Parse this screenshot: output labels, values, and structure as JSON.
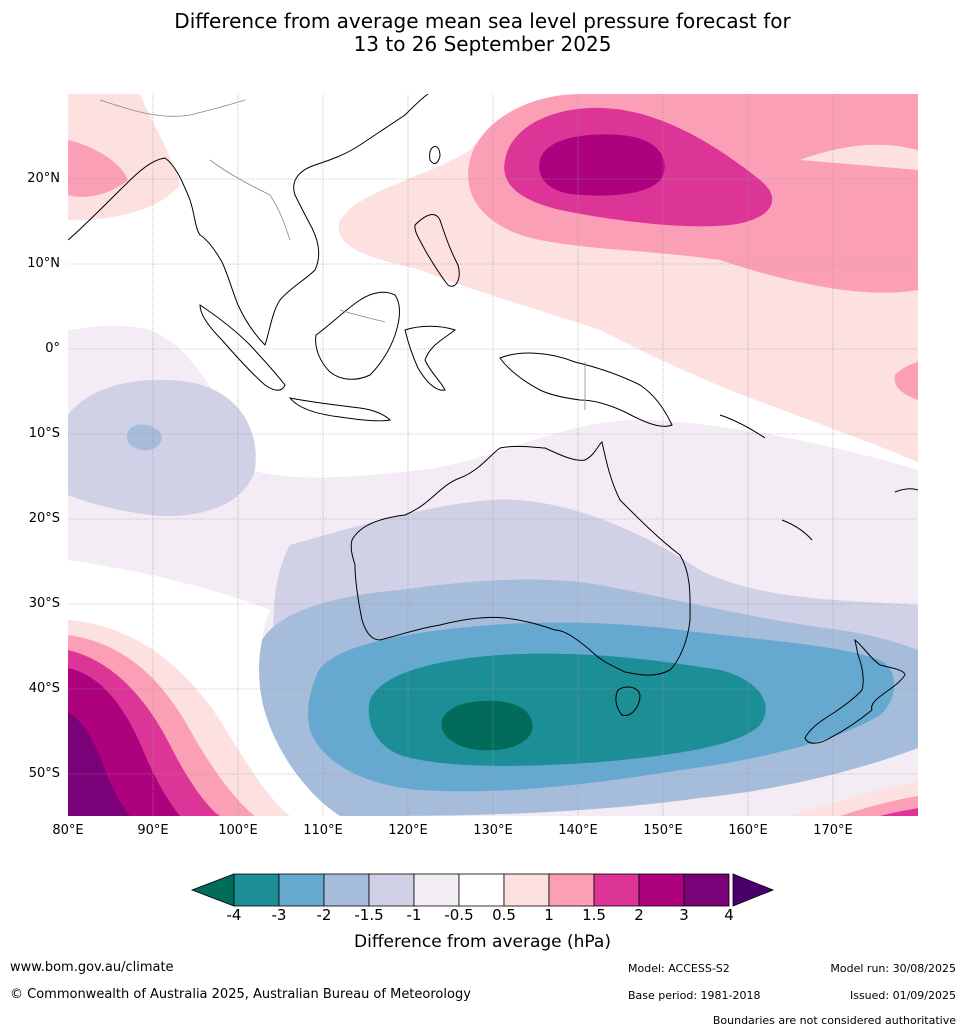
{
  "title": {
    "line1": "Difference from average mean sea level pressure forecast for",
    "line2": "13 to 26 September 2025"
  },
  "axes": {
    "lat_labels": [
      "20°N",
      "10°N",
      "0°",
      "10°S",
      "20°S",
      "30°S",
      "40°S",
      "50°S"
    ],
    "lon_labels": [
      "80°E",
      "90°E",
      "100°E",
      "110°E",
      "120°E",
      "130°E",
      "140°E",
      "150°E",
      "160°E",
      "170°E"
    ]
  },
  "colorbar": {
    "title": "Difference from average (hPa)",
    "ticks": [
      "-4",
      "-3",
      "-2",
      "-1.5",
      "-1",
      "-0.5",
      "0.5",
      "1",
      "1.5",
      "2",
      "3",
      "4"
    ],
    "colors": [
      "#1c8e96",
      "#66a9d0",
      "#a6bcdb",
      "#d0d0e6",
      "#f4ecf5",
      "#ffffff",
      "#fde0e0",
      "#fa9fb5",
      "#dd3497",
      "#ae017e",
      "#7a0177"
    ],
    "under_color": "#016c59",
    "over_color": "#49006a"
  },
  "footer": {
    "website": "www.bom.gov.au/climate",
    "copyright": "© Commonwealth of Australia 2025, Australian Bureau of Meteorology",
    "model": "Model: ACCESS-S2",
    "base_period": "Base period: 1981-2018",
    "model_run": "Model run: 30/08/2025",
    "issued": "Issued: 01/09/2025",
    "boundaries": "Boundaries are not considered authoritative"
  }
}
